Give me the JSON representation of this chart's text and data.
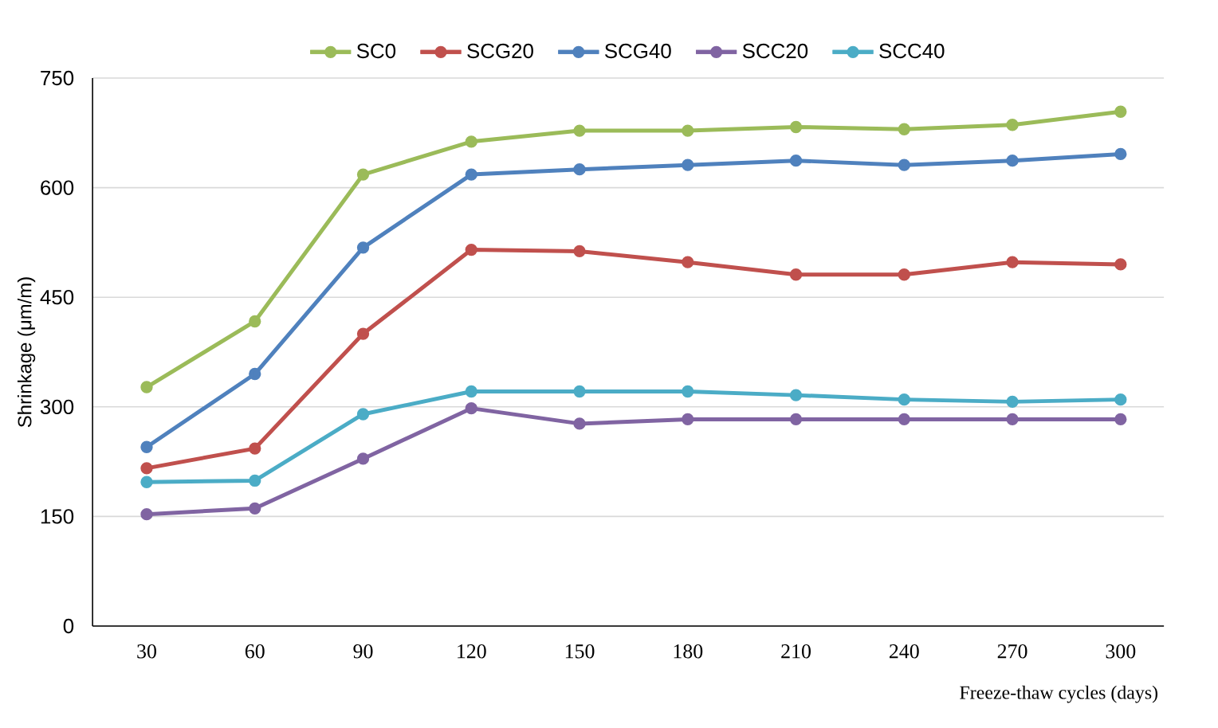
{
  "chart_data": {
    "type": "line",
    "xlabel": "Freeze-thaw cycles (days)",
    "ylabel": "Shrinkage (μm/m)",
    "categories": [
      "30",
      "60",
      "90",
      "120",
      "150",
      "180",
      "210",
      "240",
      "270",
      "300"
    ],
    "series": [
      {
        "name": "SC0",
        "color": "#9bbb59",
        "values": [
          327,
          417,
          618,
          663,
          678,
          678,
          683,
          680,
          686,
          704
        ]
      },
      {
        "name": "SCG20",
        "color": "#c0504d",
        "values": [
          216,
          243,
          400,
          515,
          513,
          498,
          481,
          481,
          498,
          495
        ]
      },
      {
        "name": "SCG40",
        "color": "#4f81bd",
        "values": [
          245,
          345,
          518,
          618,
          625,
          631,
          637,
          631,
          637,
          646
        ]
      },
      {
        "name": "SCC20",
        "color": "#8064a2",
        "values": [
          153,
          161,
          229,
          298,
          277,
          283,
          283,
          283,
          283,
          283
        ]
      },
      {
        "name": "SCC40",
        "color": "#4bacc6",
        "values": [
          197,
          199,
          290,
          321,
          321,
          321,
          316,
          310,
          307,
          310
        ]
      }
    ],
    "ylim": [
      0,
      750
    ],
    "yticks": [
      0,
      150,
      300,
      450,
      600,
      750
    ],
    "grid": "y",
    "legend": "top",
    "marker": "circle",
    "line_style": "solid"
  }
}
